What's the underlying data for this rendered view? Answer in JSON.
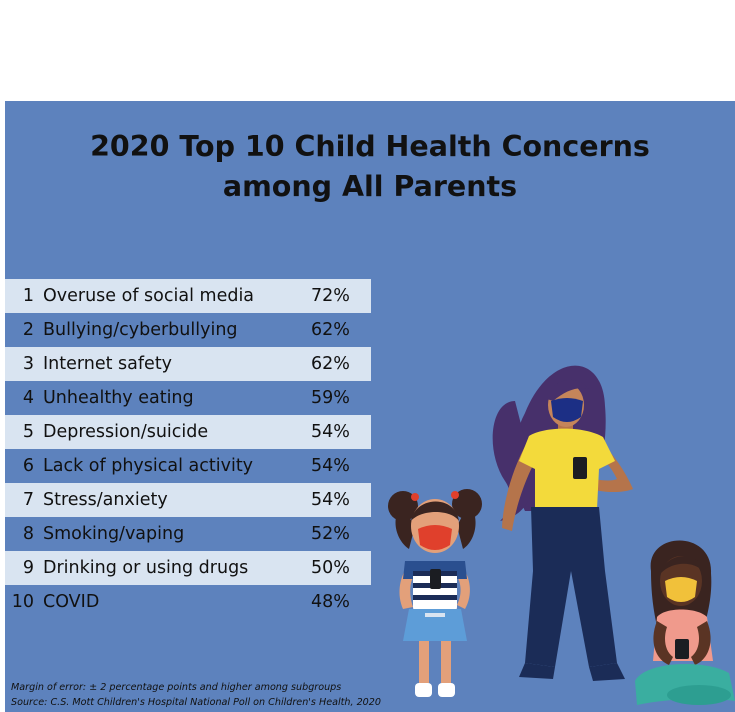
{
  "title": {
    "line1": "2020 Top 10 Child Health Concerns",
    "line2": "among All Parents"
  },
  "concerns": [
    {
      "rank": "1",
      "label": "Overuse of social media",
      "value": "72%"
    },
    {
      "rank": "2",
      "label": "Bullying/cyberbullying",
      "value": "62%"
    },
    {
      "rank": "3",
      "label": "Internet safety",
      "value": "62%"
    },
    {
      "rank": "4",
      "label": "Unhealthy eating",
      "value": "59%"
    },
    {
      "rank": "5",
      "label": "Depression/suicide",
      "value": "54%"
    },
    {
      "rank": "6",
      "label": "Lack of physical activity",
      "value": "54%"
    },
    {
      "rank": "7",
      "label": "Stress/anxiety",
      "value": "54%"
    },
    {
      "rank": "8",
      "label": "Smoking/vaping",
      "value": "52%"
    },
    {
      "rank": "9",
      "label": "Drinking or using drugs",
      "value": "50%"
    },
    {
      "rank": "10",
      "label": "COVID",
      "value": "48%"
    }
  ],
  "footnotes": {
    "margin": "Margin of error: ± 2 percentage points and higher among subgroups",
    "source": "Source: C.S. Mott Children's Hospital National Poll on Children's Health, 2020"
  },
  "colors": {
    "background": "#5d82bd",
    "row_highlight": "#d9e4f1",
    "text": "#111111"
  },
  "illustration": {
    "figures": [
      "woman-with-phone",
      "girl-with-phone",
      "seated-child-with-phone"
    ]
  }
}
